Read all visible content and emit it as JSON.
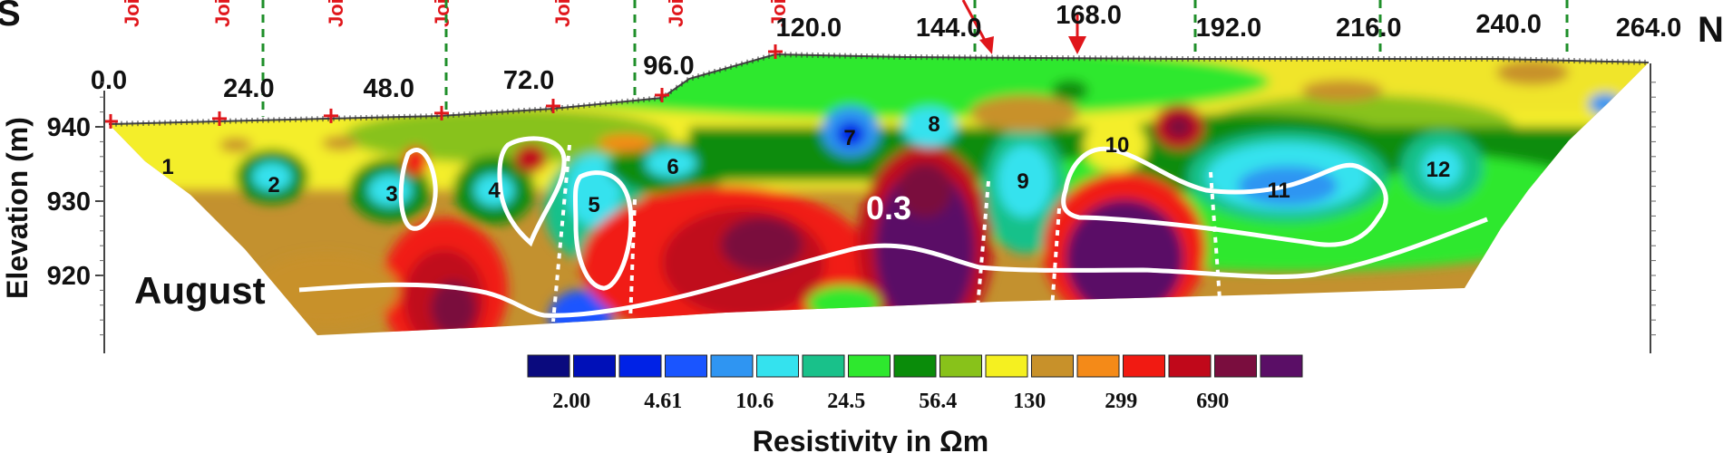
{
  "chart_data": {
    "type": "heatmap",
    "title": "",
    "xlabel": "",
    "ylabel": "Elevation (m)",
    "direction_left": "S",
    "direction_right": "N",
    "xlim": [
      0,
      264
    ],
    "ylim": [
      911,
      946
    ],
    "x_ticks": [
      "0.0",
      "24.0",
      "48.0",
      "72.0",
      "96.0",
      "120.0",
      "144.0",
      "168.0",
      "192.0",
      "216.0",
      "240.0",
      "264.0"
    ],
    "y_ticks": [
      940,
      930,
      920
    ],
    "joint_label": "Joint",
    "joint_count": 7,
    "arrow_count": 2,
    "month_label": "August",
    "contour_value_label": "0.3",
    "anomaly_labels": [
      "1",
      "2",
      "3",
      "4",
      "5",
      "6",
      "7",
      "8",
      "9",
      "10",
      "11",
      "12"
    ],
    "colorbar": {
      "title": "Resistivity in Ωm",
      "labels": [
        "2.00",
        "4.61",
        "10.6",
        "24.5",
        "56.4",
        "130",
        "299",
        "690"
      ],
      "colors": [
        "#0a0a7e",
        "#0010b8",
        "#0022e6",
        "#1a55ff",
        "#2f95f2",
        "#34e2ee",
        "#19c18a",
        "#2ee82e",
        "#0a8c0a",
        "#88c21a",
        "#f5f020",
        "#c8912a",
        "#f48a18",
        "#f11a12",
        "#c0081a",
        "#7a0d3e",
        "#5a0e66"
      ]
    }
  }
}
